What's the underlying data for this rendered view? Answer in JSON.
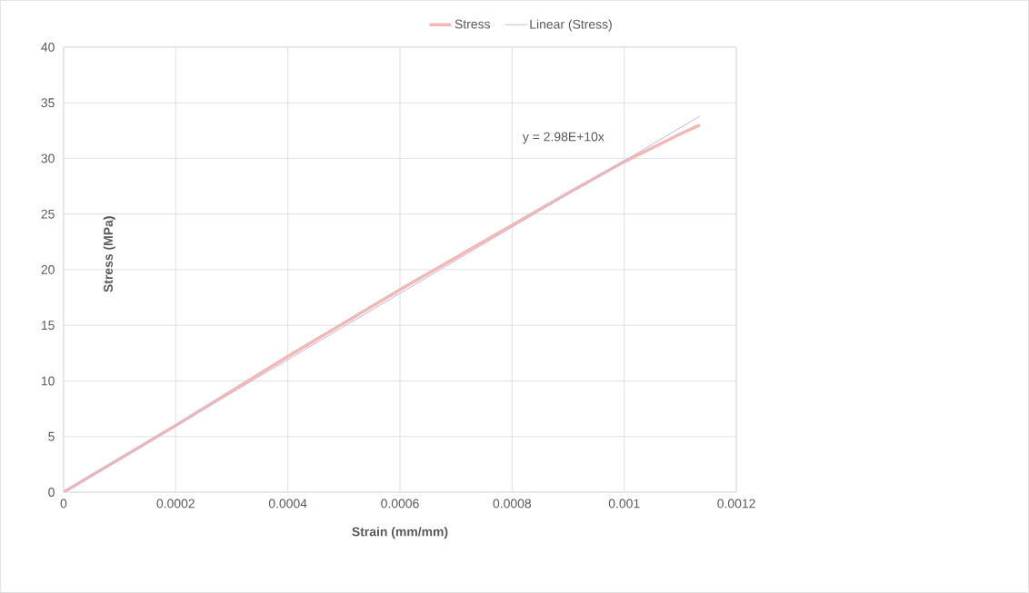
{
  "chart_data": {
    "type": "line",
    "xlabel": "Strain (mm/mm)",
    "ylabel": "Stress (MPa)",
    "xlim": [
      0,
      0.0012
    ],
    "xticks": [
      0,
      0.0002,
      0.0004,
      0.0006,
      0.0008,
      0.001,
      0.0012
    ],
    "ylim": [
      0,
      40
    ],
    "yticks": [
      0,
      5,
      10,
      15,
      20,
      25,
      30,
      35,
      40
    ],
    "grid": true,
    "legend": "top",
    "marker": "none",
    "annotations": [
      "y = 2.98E+10x"
    ],
    "series": [
      {
        "name": "Stress",
        "color": "#f2b8b5",
        "x": [
          0,
          0.0001,
          0.0002,
          0.0003,
          0.0004,
          0.0005,
          0.0006,
          0.0007,
          0.0008,
          0.0009,
          0.001,
          0.0011,
          0.001135
        ],
        "values": [
          0,
          3.0,
          6.0,
          9.1,
          12.2,
          15.2,
          18.2,
          21.1,
          24.0,
          26.9,
          29.7,
          32.2,
          33.0
        ]
      },
      {
        "name": "Linear (Stress)",
        "color": "#c9b6e2",
        "x": [
          0,
          0.001135
        ],
        "values": [
          0,
          33.8
        ]
      }
    ]
  }
}
